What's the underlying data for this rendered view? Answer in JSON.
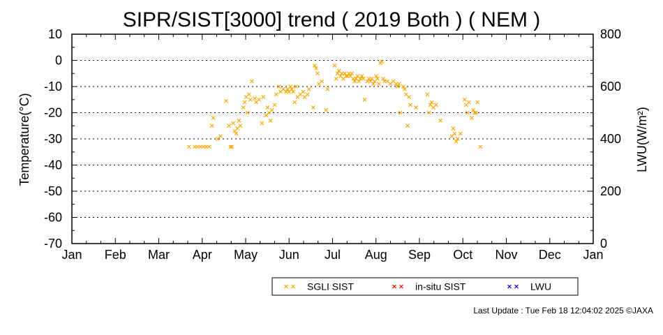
{
  "chart_data": {
    "type": "scatter",
    "title": "SIPR/SIST[3000] trend ( 2019 Both ) ( NEM )",
    "ylabel": "Temperature(°C)",
    "y2label": "LWU(W/m²)",
    "ylim": [
      -70,
      10
    ],
    "y2lim": [
      0,
      800
    ],
    "xlim": [
      "2019-01-01",
      "2020-01-01"
    ],
    "yticks": [
      "10",
      "0",
      "-10",
      "-20",
      "-30",
      "-40",
      "-50",
      "-60",
      "-70"
    ],
    "y2ticks": [
      "800",
      "600",
      "400",
      "200",
      "0"
    ],
    "xticks": [
      "Jan",
      "Feb",
      "Mar",
      "Apr",
      "May",
      "Jun",
      "Jul",
      "Aug",
      "Sep",
      "Oct",
      "Nov",
      "Dec",
      "Jan"
    ],
    "grid": "horizontal dotted",
    "legend_position": "bottom-right",
    "series": [
      {
        "name": "SGLI SIST",
        "color": "#ffa500",
        "marker": "x",
        "points": [
          [
            "2019-03-24",
            -33
          ],
          [
            "2019-03-28",
            -33
          ],
          [
            "2019-03-30",
            -33
          ],
          [
            "2019-04-01",
            -33
          ],
          [
            "2019-04-03",
            -33
          ],
          [
            "2019-04-05",
            -33
          ],
          [
            "2019-04-07",
            -33
          ],
          [
            "2019-04-09",
            -25
          ],
          [
            "2019-04-10",
            -22
          ],
          [
            "2019-04-13",
            -30
          ],
          [
            "2019-04-15",
            -29
          ],
          [
            "2019-04-19",
            -15.5
          ],
          [
            "2019-04-21",
            -25
          ],
          [
            "2019-04-22",
            -33
          ],
          [
            "2019-04-23",
            -33
          ],
          [
            "2019-04-24",
            -24
          ],
          [
            "2019-04-25",
            -27
          ],
          [
            "2019-04-26",
            -28
          ],
          [
            "2019-04-27",
            -26
          ],
          [
            "2019-04-28",
            -23
          ],
          [
            "2019-04-29",
            -25
          ],
          [
            "2019-05-01",
            -18
          ],
          [
            "2019-05-02",
            -16
          ],
          [
            "2019-05-03",
            -14
          ],
          [
            "2019-05-04",
            -20
          ],
          [
            "2019-05-05",
            -13
          ],
          [
            "2019-05-06",
            -15
          ],
          [
            "2019-05-07",
            -8
          ],
          [
            "2019-05-09",
            -14.5
          ],
          [
            "2019-05-10",
            -16
          ],
          [
            "2019-05-12",
            -15
          ],
          [
            "2019-05-14",
            -24
          ],
          [
            "2019-05-15",
            -14
          ],
          [
            "2019-05-17",
            -21
          ],
          [
            "2019-05-18",
            -18
          ],
          [
            "2019-05-19",
            -20
          ],
          [
            "2019-05-20",
            -23
          ],
          [
            "2019-05-21",
            -19
          ],
          [
            "2019-05-23",
            -17
          ],
          [
            "2019-05-24",
            -13
          ],
          [
            "2019-05-26",
            -10
          ],
          [
            "2019-05-27",
            -12
          ],
          [
            "2019-05-29",
            -11
          ],
          [
            "2019-05-31",
            -12
          ],
          [
            "2019-06-01",
            -11
          ],
          [
            "2019-06-02",
            -12
          ],
          [
            "2019-06-03",
            -10
          ],
          [
            "2019-06-04",
            -11
          ],
          [
            "2019-06-05",
            -12
          ],
          [
            "2019-06-06",
            -16
          ],
          [
            "2019-06-07",
            -10
          ],
          [
            "2019-06-08",
            -14
          ],
          [
            "2019-06-10",
            -13
          ],
          [
            "2019-06-12",
            -12
          ],
          [
            "2019-06-13",
            -14
          ],
          [
            "2019-06-15",
            -13
          ],
          [
            "2019-06-16",
            -11
          ],
          [
            "2019-06-19",
            -18
          ],
          [
            "2019-06-20",
            -2
          ],
          [
            "2019-06-21",
            -3
          ],
          [
            "2019-06-22",
            -5
          ],
          [
            "2019-06-23",
            -9
          ],
          [
            "2019-06-25",
            -8
          ],
          [
            "2019-06-28",
            -19
          ],
          [
            "2019-06-29",
            -11
          ],
          [
            "2019-07-04",
            -2
          ],
          [
            "2019-07-05",
            -7
          ],
          [
            "2019-07-06",
            -5
          ],
          [
            "2019-07-07",
            -4
          ],
          [
            "2019-07-08",
            -6
          ],
          [
            "2019-07-09",
            -5
          ],
          [
            "2019-07-10",
            -7
          ],
          [
            "2019-07-11",
            -5
          ],
          [
            "2019-07-12",
            -6
          ],
          [
            "2019-07-13",
            -6
          ],
          [
            "2019-07-14",
            -5
          ],
          [
            "2019-07-15",
            -6
          ],
          [
            "2019-07-16",
            -5
          ],
          [
            "2019-07-17",
            -7
          ],
          [
            "2019-07-18",
            -8
          ],
          [
            "2019-07-19",
            -7
          ],
          [
            "2019-07-20",
            -6
          ],
          [
            "2019-07-21",
            -8
          ],
          [
            "2019-07-22",
            -7
          ],
          [
            "2019-07-23",
            -6
          ],
          [
            "2019-07-24",
            -7
          ],
          [
            "2019-07-25",
            -15
          ],
          [
            "2019-07-27",
            -8
          ],
          [
            "2019-07-28",
            -7
          ],
          [
            "2019-07-29",
            -8
          ],
          [
            "2019-07-30",
            -7
          ],
          [
            "2019-07-31",
            -9
          ],
          [
            "2019-08-01",
            -8
          ],
          [
            "2019-08-02",
            -6
          ],
          [
            "2019-08-03",
            -7
          ],
          [
            "2019-08-04",
            -9
          ],
          [
            "2019-08-05",
            -1
          ],
          [
            "2019-08-06",
            -0.5
          ],
          [
            "2019-08-07",
            -7
          ],
          [
            "2019-08-08",
            -8
          ],
          [
            "2019-08-10",
            -8
          ],
          [
            "2019-08-12",
            -9
          ],
          [
            "2019-08-14",
            -8
          ],
          [
            "2019-08-16",
            -9
          ],
          [
            "2019-08-17",
            -10
          ],
          [
            "2019-08-18",
            -9
          ],
          [
            "2019-08-19",
            -20
          ],
          [
            "2019-08-21",
            -10
          ],
          [
            "2019-08-22",
            -11
          ],
          [
            "2019-08-23",
            -13
          ],
          [
            "2019-08-24",
            -25
          ],
          [
            "2019-08-25",
            -14
          ],
          [
            "2019-08-26",
            -17
          ],
          [
            "2019-08-30",
            -18
          ],
          [
            "2019-09-07",
            -13
          ],
          [
            "2019-09-08",
            -20
          ],
          [
            "2019-09-09",
            -17
          ],
          [
            "2019-09-10",
            -16
          ],
          [
            "2019-09-11",
            -18
          ],
          [
            "2019-09-13",
            -17
          ],
          [
            "2019-09-16",
            -23
          ],
          [
            "2019-09-24",
            -29
          ],
          [
            "2019-09-25",
            -26
          ],
          [
            "2019-09-26",
            -28
          ],
          [
            "2019-09-27",
            -31
          ],
          [
            "2019-09-28",
            -30
          ],
          [
            "2019-09-30",
            -28
          ],
          [
            "2019-10-03",
            -15
          ],
          [
            "2019-10-04",
            -17
          ],
          [
            "2019-10-05",
            -20
          ],
          [
            "2019-10-06",
            -16
          ],
          [
            "2019-10-08",
            -22
          ],
          [
            "2019-10-09",
            -19
          ],
          [
            "2019-10-10",
            -20
          ],
          [
            "2019-10-11",
            -20
          ],
          [
            "2019-10-12",
            -16
          ],
          [
            "2019-10-14",
            -33
          ]
        ]
      },
      {
        "name": "in-situ SIST",
        "color": "#ff0000",
        "marker": "x",
        "points": []
      },
      {
        "name": "LWU",
        "color": "#0000ff",
        "marker": "x",
        "points": []
      }
    ]
  },
  "footer": "Last Update : Tue Feb 18 12:04:02 2025  ©JAXA"
}
